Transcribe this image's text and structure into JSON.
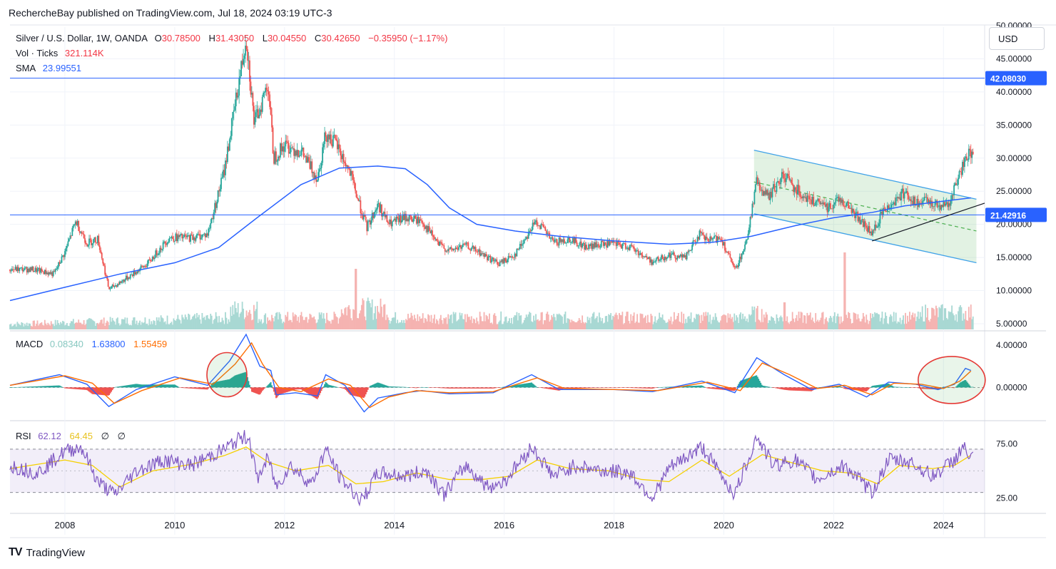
{
  "header": {
    "published": "RechercheBay published on TradingView.com, Jul 18, 2024 03:19 UTC-3"
  },
  "legend": {
    "symbol": "Silver / U.S. Dollar, 1W, OANDA",
    "o_label": "O",
    "o": "30.78500",
    "h_label": "H",
    "h": "31.43050",
    "l_label": "L",
    "l": "30.04550",
    "c_label": "C",
    "c": "30.42650",
    "change": "−0.35950 (−1.17%)",
    "vol_label": "Vol · Ticks",
    "vol": "321.114K",
    "sma_label": "SMA",
    "sma": "23.99551"
  },
  "macd_legend": {
    "label": "MACD",
    "hist": "0.08340",
    "macd": "1.63800",
    "signal": "1.55459"
  },
  "rsi_legend": {
    "label": "RSI",
    "rsi": "62.12",
    "ma": "64.45",
    "x1": "∅",
    "x2": "∅"
  },
  "currency_button": "USD",
  "footer": {
    "brand": "TradingView",
    "logo": "TV"
  },
  "colors": {
    "up": "#26a69a",
    "down": "#ef5350",
    "sma": "#2962ff",
    "hline": "#2962ff",
    "macd": "#2962ff",
    "signal": "#ff6d00",
    "rsi": "#7e57c2",
    "rsi_ma": "#f5d000",
    "channel": "#4caf50"
  },
  "chart_data": [
    {
      "type": "candlestick",
      "title": "Silver / U.S. Dollar, 1W, OANDA",
      "x_ticks": [
        "2008",
        "2010",
        "2012",
        "2014",
        "2016",
        "2018",
        "2020",
        "2022",
        "2024"
      ],
      "y_ticks": [
        "5.00000",
        "10.00000",
        "15.00000",
        "20.00000",
        "25.00000",
        "30.00000",
        "35.00000",
        "40.00000",
        "45.00000",
        "50.00000"
      ],
      "ylim": [
        5,
        50
      ],
      "horizontal_levels": [
        {
          "value": 42.0803,
          "label": "42.08030"
        },
        {
          "value": 21.42916,
          "label": "21.42916"
        }
      ],
      "price_path": [
        [
          2007.4,
          13.2
        ],
        [
          2007.8,
          12.5
        ],
        [
          2008.0,
          15.8
        ],
        [
          2008.2,
          20.5
        ],
        [
          2008.4,
          17.2
        ],
        [
          2008.6,
          17.8
        ],
        [
          2008.8,
          10.2
        ],
        [
          2009.0,
          11.2
        ],
        [
          2009.5,
          14.0
        ],
        [
          2009.9,
          18.0
        ],
        [
          2010.3,
          18.0
        ],
        [
          2010.6,
          18.5
        ],
        [
          2010.9,
          28.0
        ],
        [
          2011.2,
          43.0
        ],
        [
          2011.3,
          48.5
        ],
        [
          2011.45,
          35.0
        ],
        [
          2011.7,
          41.5
        ],
        [
          2011.8,
          30.0
        ],
        [
          2012.0,
          32.0
        ],
        [
          2012.3,
          31.0
        ],
        [
          2012.6,
          27.0
        ],
        [
          2012.75,
          33.8
        ],
        [
          2012.95,
          32.0
        ],
        [
          2013.2,
          27.5
        ],
        [
          2013.4,
          22.0
        ],
        [
          2013.5,
          19.5
        ],
        [
          2013.7,
          23.0
        ],
        [
          2013.9,
          20.0
        ],
        [
          2014.2,
          21.0
        ],
        [
          2014.5,
          20.5
        ],
        [
          2014.8,
          17.0
        ],
        [
          2015.0,
          16.0
        ],
        [
          2015.3,
          16.8
        ],
        [
          2015.6,
          15.5
        ],
        [
          2015.9,
          14.0
        ],
        [
          2016.2,
          15.5
        ],
        [
          2016.5,
          19.5
        ],
        [
          2016.6,
          20.5
        ],
        [
          2016.9,
          17.2
        ],
        [
          2017.2,
          17.8
        ],
        [
          2017.5,
          16.5
        ],
        [
          2017.8,
          17.0
        ],
        [
          2018.0,
          17.0
        ],
        [
          2018.3,
          16.6
        ],
        [
          2018.7,
          14.3
        ],
        [
          2019.0,
          15.4
        ],
        [
          2019.3,
          15.0
        ],
        [
          2019.55,
          18.5
        ],
        [
          2019.7,
          17.5
        ],
        [
          2019.95,
          18.0
        ],
        [
          2020.2,
          13.0
        ],
        [
          2020.4,
          17.0
        ],
        [
          2020.6,
          26.5
        ],
        [
          2020.8,
          24.0
        ],
        [
          2021.1,
          27.5
        ],
        [
          2021.3,
          25.5
        ],
        [
          2021.6,
          23.5
        ],
        [
          2021.9,
          22.5
        ],
        [
          2022.1,
          24.0
        ],
        [
          2022.35,
          22.0
        ],
        [
          2022.7,
          18.5
        ],
        [
          2022.9,
          22.0
        ],
        [
          2023.1,
          23.5
        ],
        [
          2023.3,
          25.0
        ],
        [
          2023.5,
          23.0
        ],
        [
          2023.7,
          23.5
        ],
        [
          2023.9,
          23.0
        ],
        [
          2024.1,
          23.0
        ],
        [
          2024.3,
          27.5
        ],
        [
          2024.4,
          30.5
        ],
        [
          2024.5,
          30.4
        ]
      ],
      "sma_path": [
        [
          2007.0,
          8.5
        ],
        [
          2008.0,
          10.5
        ],
        [
          2009.0,
          12.5
        ],
        [
          2010.0,
          14.2
        ],
        [
          2010.8,
          16.5
        ],
        [
          2011.5,
          21.0
        ],
        [
          2012.3,
          26.0
        ],
        [
          2013.0,
          28.5
        ],
        [
          2013.7,
          28.8
        ],
        [
          2014.2,
          28.4
        ],
        [
          2014.6,
          26.0
        ],
        [
          2015.0,
          22.5
        ],
        [
          2015.5,
          20.0
        ],
        [
          2016.2,
          19.0
        ],
        [
          2017.0,
          18.2
        ],
        [
          2018.0,
          17.5
        ],
        [
          2019.0,
          17.0
        ],
        [
          2019.8,
          17.3
        ],
        [
          2020.5,
          18.2
        ],
        [
          2021.3,
          19.8
        ],
        [
          2022.0,
          21.0
        ],
        [
          2022.7,
          21.8
        ],
        [
          2023.3,
          22.8
        ],
        [
          2024.0,
          23.5
        ],
        [
          2024.5,
          24.0
        ]
      ],
      "channel": {
        "upper": [
          [
            2020.55,
            31.2
          ],
          [
            2024.6,
            23.8
          ]
        ],
        "lower": [
          [
            2020.55,
            21.6
          ],
          [
            2024.6,
            14.2
          ]
        ],
        "mid": [
          [
            2020.55,
            26.4
          ],
          [
            2024.6,
            19.0
          ]
        ]
      },
      "support_line": [
        [
          2022.7,
          17.5
        ],
        [
          2024.75,
          23.2
        ]
      ]
    },
    {
      "type": "line",
      "title": "MACD",
      "y_ticks": [
        "0.00000",
        "4.00000"
      ],
      "ylim": [
        -3,
        5.2
      ],
      "macd_path": [
        [
          2007.0,
          0.2
        ],
        [
          2007.9,
          1.2
        ],
        [
          2008.4,
          0.3
        ],
        [
          2008.8,
          -1.8
        ],
        [
          2009.3,
          -0.2
        ],
        [
          2010.0,
          1.0
        ],
        [
          2010.6,
          0.2
        ],
        [
          2011.0,
          2.5
        ],
        [
          2011.3,
          5.0
        ],
        [
          2011.55,
          2.0
        ],
        [
          2011.75,
          1.6
        ],
        [
          2011.85,
          -0.7
        ],
        [
          2012.2,
          -0.5
        ],
        [
          2012.6,
          -0.8
        ],
        [
          2012.75,
          1.2
        ],
        [
          2013.1,
          0.2
        ],
        [
          2013.45,
          -2.3
        ],
        [
          2013.7,
          -1.0
        ],
        [
          2014.2,
          -0.5
        ],
        [
          2014.5,
          -0.3
        ],
        [
          2015.0,
          -0.6
        ],
        [
          2015.8,
          -0.5
        ],
        [
          2016.5,
          1.2
        ],
        [
          2017.0,
          -0.2
        ],
        [
          2018.0,
          -0.2
        ],
        [
          2018.7,
          -0.4
        ],
        [
          2019.6,
          0.6
        ],
        [
          2020.2,
          -0.5
        ],
        [
          2020.6,
          2.8
        ],
        [
          2021.1,
          1.2
        ],
        [
          2021.6,
          -0.2
        ],
        [
          2022.1,
          0.3
        ],
        [
          2022.6,
          -0.9
        ],
        [
          2023.0,
          0.5
        ],
        [
          2023.5,
          0.3
        ],
        [
          2023.9,
          -0.2
        ],
        [
          2024.2,
          0.3
        ],
        [
          2024.4,
          1.8
        ],
        [
          2024.5,
          1.6
        ]
      ],
      "signal_path": [
        [
          2007.0,
          0.2
        ],
        [
          2008.0,
          1.1
        ],
        [
          2008.5,
          0.4
        ],
        [
          2008.9,
          -1.5
        ],
        [
          2009.4,
          -0.3
        ],
        [
          2010.1,
          0.9
        ],
        [
          2010.7,
          0.3
        ],
        [
          2011.1,
          2.2
        ],
        [
          2011.4,
          4.2
        ],
        [
          2011.6,
          2.2
        ],
        [
          2011.9,
          0.0
        ],
        [
          2012.3,
          -0.4
        ],
        [
          2012.8,
          0.8
        ],
        [
          2013.2,
          0.2
        ],
        [
          2013.55,
          -1.9
        ],
        [
          2013.9,
          -0.9
        ],
        [
          2014.4,
          -0.3
        ],
        [
          2015.0,
          -0.5
        ],
        [
          2015.8,
          -0.4
        ],
        [
          2016.6,
          0.9
        ],
        [
          2017.1,
          -0.1
        ],
        [
          2018.0,
          -0.2
        ],
        [
          2018.8,
          -0.3
        ],
        [
          2019.7,
          0.5
        ],
        [
          2020.3,
          -0.3
        ],
        [
          2020.7,
          2.3
        ],
        [
          2021.2,
          1.2
        ],
        [
          2021.7,
          -0.1
        ],
        [
          2022.2,
          0.2
        ],
        [
          2022.7,
          -0.7
        ],
        [
          2023.1,
          0.4
        ],
        [
          2023.6,
          0.3
        ],
        [
          2024.0,
          -0.1
        ],
        [
          2024.3,
          0.6
        ],
        [
          2024.5,
          1.55
        ]
      ]
    },
    {
      "type": "line",
      "title": "RSI",
      "y_ticks": [
        "25.00",
        "75.00"
      ],
      "ylim": [
        12,
        95
      ],
      "band": [
        30,
        70
      ],
      "rsi_path": [
        [
          2007.0,
          55
        ],
        [
          2007.5,
          48
        ],
        [
          2008.0,
          68
        ],
        [
          2008.3,
          72
        ],
        [
          2008.6,
          40
        ],
        [
          2008.9,
          28
        ],
        [
          2009.3,
          50
        ],
        [
          2009.8,
          60
        ],
        [
          2010.3,
          55
        ],
        [
          2010.9,
          70
        ],
        [
          2011.2,
          80
        ],
        [
          2011.35,
          82
        ],
        [
          2011.5,
          42
        ],
        [
          2011.7,
          62
        ],
        [
          2011.85,
          35
        ],
        [
          2012.1,
          55
        ],
        [
          2012.5,
          38
        ],
        [
          2012.75,
          70
        ],
        [
          2013.0,
          45
        ],
        [
          2013.4,
          22
        ],
        [
          2013.7,
          48
        ],
        [
          2014.2,
          45
        ],
        [
          2014.6,
          50
        ],
        [
          2014.9,
          28
        ],
        [
          2015.3,
          55
        ],
        [
          2015.7,
          35
        ],
        [
          2016.0,
          40
        ],
        [
          2016.5,
          72
        ],
        [
          2016.9,
          45
        ],
        [
          2017.3,
          55
        ],
        [
          2017.8,
          50
        ],
        [
          2018.3,
          48
        ],
        [
          2018.7,
          25
        ],
        [
          2019.0,
          52
        ],
        [
          2019.6,
          72
        ],
        [
          2019.9,
          50
        ],
        [
          2020.2,
          28
        ],
        [
          2020.6,
          82
        ],
        [
          2020.9,
          55
        ],
        [
          2021.3,
          60
        ],
        [
          2021.7,
          42
        ],
        [
          2022.2,
          55
        ],
        [
          2022.7,
          30
        ],
        [
          2023.0,
          60
        ],
        [
          2023.4,
          58
        ],
        [
          2023.8,
          45
        ],
        [
          2024.2,
          60
        ],
        [
          2024.35,
          72
        ],
        [
          2024.5,
          62
        ]
      ],
      "rsi_ma_path": [
        [
          2007.0,
          52
        ],
        [
          2008.0,
          60
        ],
        [
          2008.5,
          55
        ],
        [
          2009.0,
          35
        ],
        [
          2009.6,
          50
        ],
        [
          2010.3,
          56
        ],
        [
          2010.9,
          64
        ],
        [
          2011.3,
          72
        ],
        [
          2011.7,
          58
        ],
        [
          2012.2,
          50
        ],
        [
          2012.8,
          55
        ],
        [
          2013.3,
          38
        ],
        [
          2013.8,
          40
        ],
        [
          2014.4,
          48
        ],
        [
          2015.0,
          42
        ],
        [
          2015.6,
          42
        ],
        [
          2016.1,
          45
        ],
        [
          2016.6,
          60
        ],
        [
          2017.2,
          52
        ],
        [
          2017.9,
          50
        ],
        [
          2018.5,
          42
        ],
        [
          2019.0,
          40
        ],
        [
          2019.6,
          60
        ],
        [
          2020.1,
          45
        ],
        [
          2020.7,
          65
        ],
        [
          2021.2,
          58
        ],
        [
          2021.8,
          50
        ],
        [
          2022.3,
          48
        ],
        [
          2022.8,
          38
        ],
        [
          2023.2,
          55
        ],
        [
          2023.8,
          52
        ],
        [
          2024.2,
          55
        ],
        [
          2024.5,
          64.45
        ]
      ]
    }
  ]
}
